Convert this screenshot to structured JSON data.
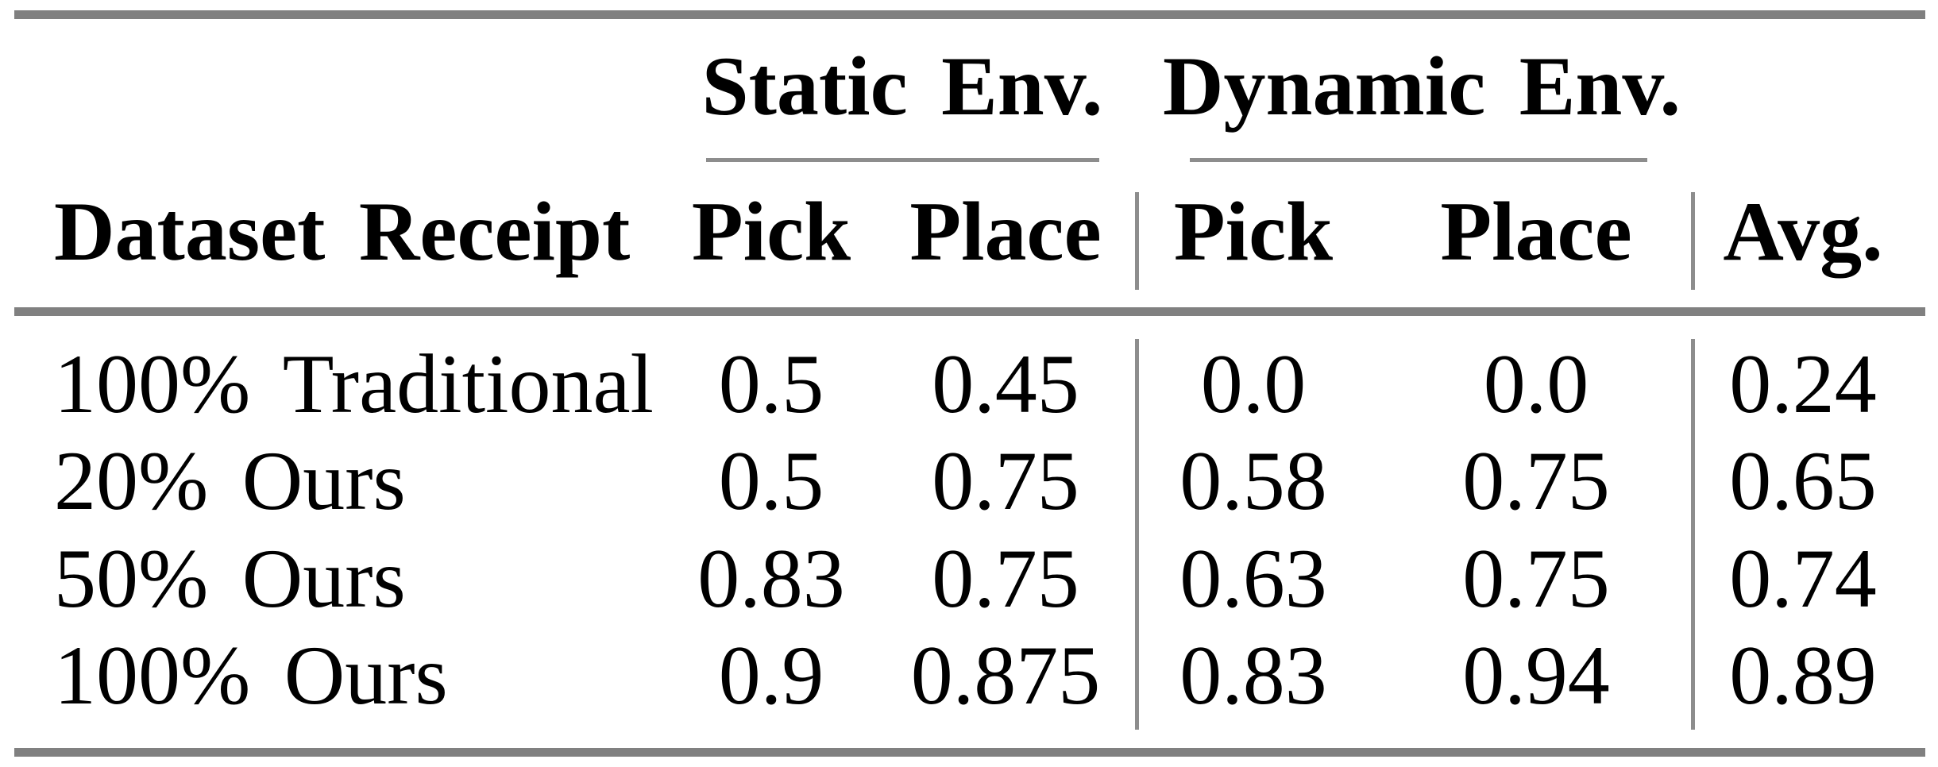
{
  "style": {
    "background": "#ffffff",
    "text_color": "#000000",
    "rule_color": "#808080",
    "thin_rule_color": "#8d8d8d"
  },
  "table": {
    "group_headers": [
      {
        "label": "Static Env."
      },
      {
        "label": "Dynamic Env."
      }
    ],
    "columns": [
      "Dataset Receipt",
      "Pick",
      "Place",
      "Pick",
      "Place",
      "Avg."
    ],
    "rows": [
      {
        "cells": [
          "100% Traditional",
          "0.5",
          "0.45",
          "0.0",
          "0.0",
          "0.24"
        ]
      },
      {
        "cells": [
          "20% Ours",
          "0.5",
          "0.75",
          "0.58",
          "0.75",
          "0.65"
        ]
      },
      {
        "cells": [
          "50% Ours",
          "0.83",
          "0.75",
          "0.63",
          "0.75",
          "0.74"
        ]
      },
      {
        "cells": [
          "100% Ours",
          "0.9",
          "0.875",
          "0.83",
          "0.94",
          "0.89"
        ]
      }
    ]
  }
}
